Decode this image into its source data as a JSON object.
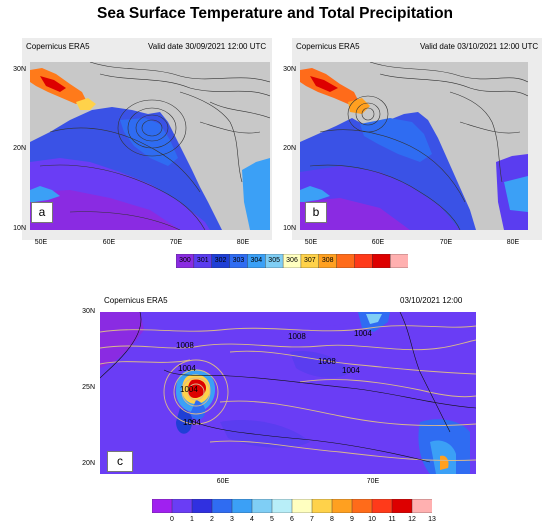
{
  "title": "Sea Surface Temperature and Total Precipitation",
  "panels": {
    "a": {
      "source": "Copernicus ERA5",
      "valid": "Valid date 30/09/2021 12:00 UTC",
      "letter": "a",
      "lat_labels": [
        "30N",
        "20N",
        "10N"
      ],
      "lon_labels": [
        "50E",
        "60E",
        "70E",
        "80E"
      ]
    },
    "b": {
      "source": "Copernicus ERA5",
      "valid": "Valid date 03/10/2021 12:00 UTC",
      "letter": "b",
      "lat_labels": [
        "30N",
        "20N",
        "10N"
      ],
      "lon_labels": [
        "50E",
        "60E",
        "70E",
        "80E"
      ]
    },
    "c": {
      "source": "Copernicus ERA5",
      "valid": "03/10/2021 12:00",
      "letter": "c",
      "lat_labels": [
        "30N",
        "25N",
        "20N"
      ],
      "lon_labels": [
        "60E",
        "70E"
      ],
      "contour_labels": [
        "1008",
        "1008",
        "1008",
        "1004",
        "1004",
        "1004",
        "1004",
        "1004"
      ]
    }
  },
  "sst_colorbar": {
    "labels": [
      "300",
      "301",
      "302",
      "303",
      "304",
      "305",
      "306",
      "307",
      "308"
    ],
    "colors": [
      "#8a2be2",
      "#5a3df0",
      "#1f3fd6",
      "#2f6cf2",
      "#3ba0f6",
      "#7fcef5",
      "#ffffc0",
      "#ffd24a",
      "#ffa020",
      "#ff6b1a",
      "#ff3a1a",
      "#dd0000",
      "#ffb0b0"
    ]
  },
  "precip_colorbar": {
    "labels": [
      "0",
      "1",
      "2",
      "3",
      "4",
      "5",
      "6",
      "7",
      "8",
      "9",
      "10",
      "11",
      "12",
      "13"
    ],
    "colors": [
      "#a020f0",
      "#6a3df5",
      "#3030e0",
      "#2f6cf2",
      "#3ba0f6",
      "#7fcef5",
      "#b8eef8",
      "#ffffc0",
      "#ffd24a",
      "#ffa020",
      "#ff6b1a",
      "#ff3a1a",
      "#dd0000",
      "#ffb0b0"
    ]
  },
  "colors": {
    "land": "#c8c8c8",
    "sea": "#6a3df5",
    "contour": "#d9b88c"
  }
}
